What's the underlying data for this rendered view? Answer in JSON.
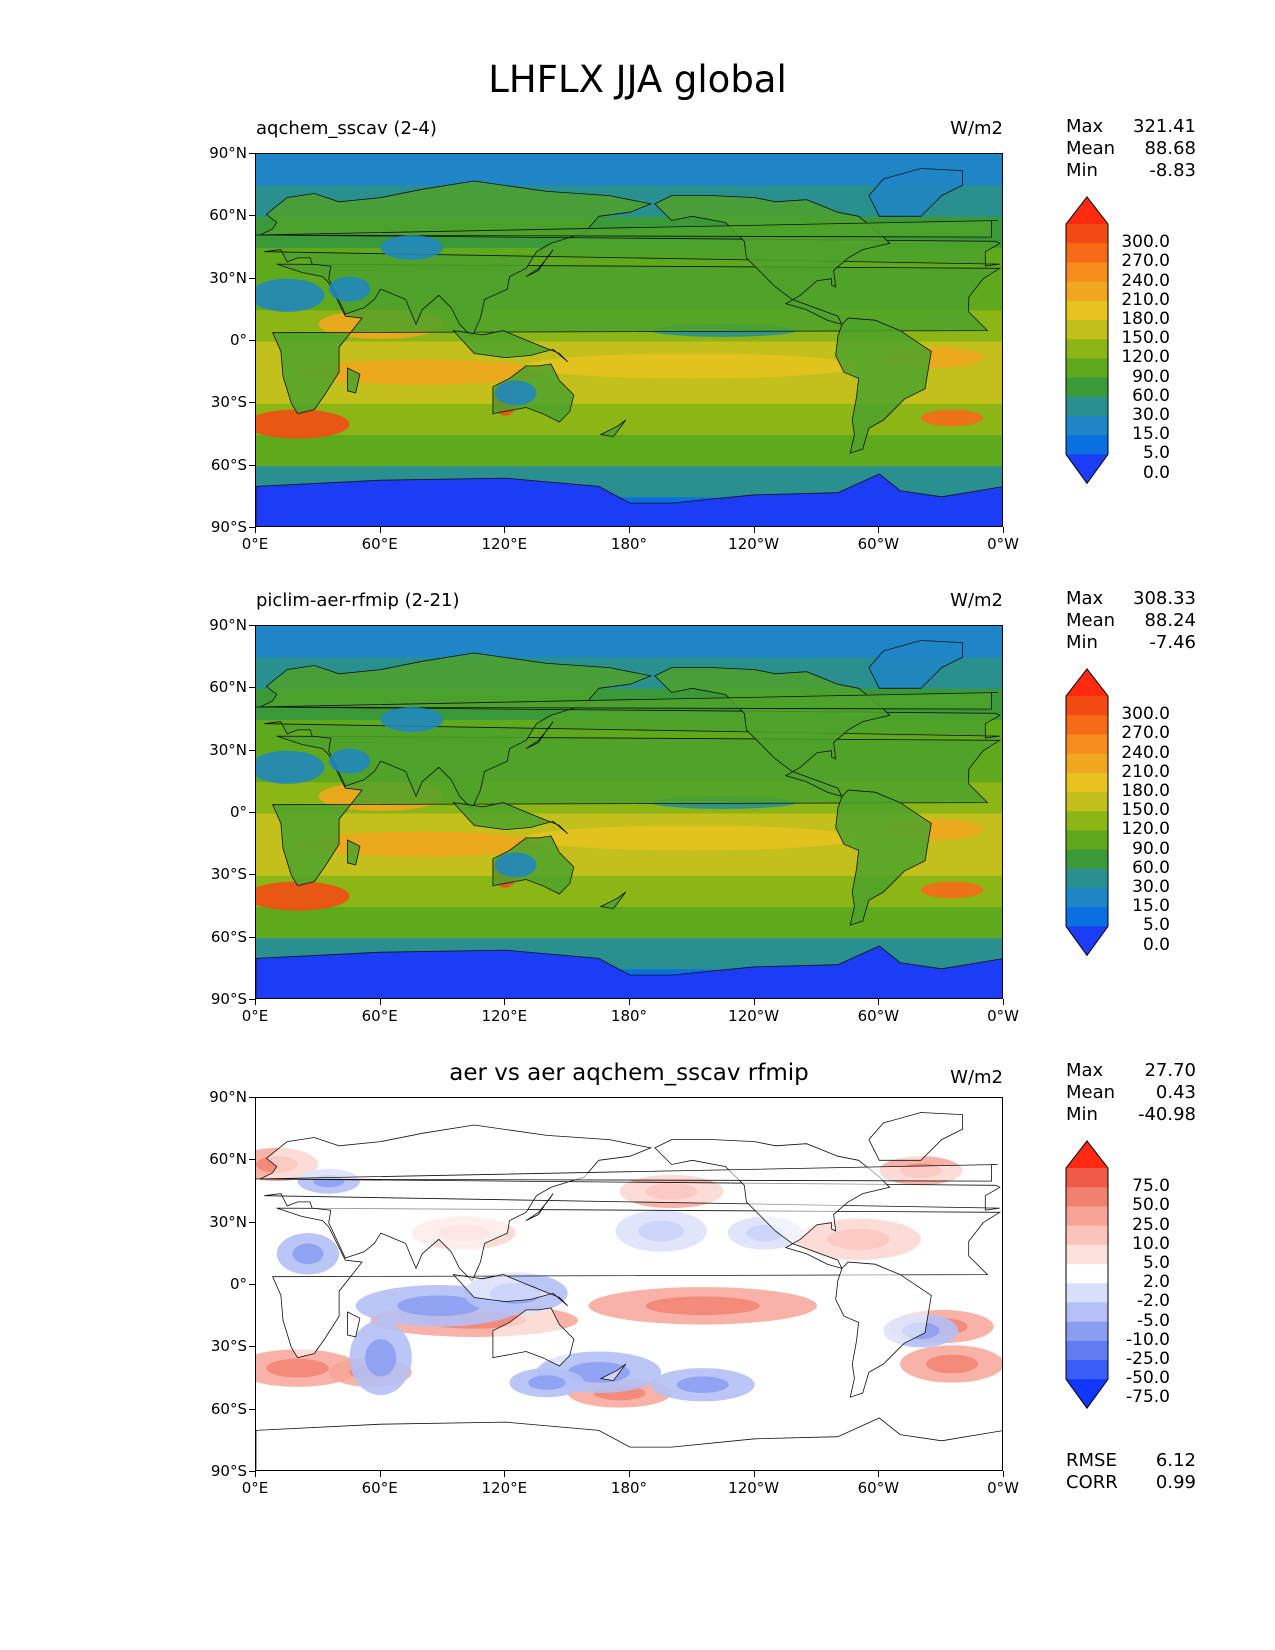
{
  "figure_title": "LHFLX JJA global",
  "axes": {
    "lat_ticks": [
      "90°N",
      "60°N",
      "30°N",
      "0°",
      "30°S",
      "60°S",
      "90°S"
    ],
    "lon_ticks": [
      "0°E",
      "60°E",
      "120°E",
      "180°",
      "120°W",
      "60°W",
      "0°W"
    ]
  },
  "panels": [
    {
      "title": "aqchem_sscav (2-4)",
      "units": "W/m2",
      "stats": {
        "max_label": "Max",
        "max": "321.41",
        "mean_label": "Mean",
        "mean": "88.68",
        "min_label": "Min",
        "min": "-8.83"
      },
      "colorbar": {
        "labels": [
          "300.0",
          "270.0",
          "240.0",
          "210.0",
          "180.0",
          "150.0",
          "120.0",
          "90.0",
          "60.0",
          "30.0",
          "15.0",
          "5.0",
          "0.0"
        ],
        "colors": [
          "#1c3cf6",
          "#0a6fe0",
          "#1e86c6",
          "#2a8f8f",
          "#3a9a3a",
          "#5faa1c",
          "#8cb516",
          "#c3c01c",
          "#e6c31e",
          "#f0a61e",
          "#f58c1c",
          "#f76a18",
          "#f24c14",
          "#ff2a10"
        ]
      }
    },
    {
      "title": "piclim-aer-rfmip (2-21)",
      "units": "W/m2",
      "stats": {
        "max_label": "Max",
        "max": "308.33",
        "mean_label": "Mean",
        "mean": "88.24",
        "min_label": "Min",
        "min": "-7.46"
      },
      "colorbar": {
        "labels": [
          "300.0",
          "270.0",
          "240.0",
          "210.0",
          "180.0",
          "150.0",
          "120.0",
          "90.0",
          "60.0",
          "30.0",
          "15.0",
          "5.0",
          "0.0"
        ],
        "colors": [
          "#1c3cf6",
          "#0a6fe0",
          "#1e86c6",
          "#2a8f8f",
          "#3a9a3a",
          "#5faa1c",
          "#8cb516",
          "#c3c01c",
          "#e6c31e",
          "#f0a61e",
          "#f58c1c",
          "#f76a18",
          "#f24c14",
          "#ff2a10"
        ]
      }
    },
    {
      "title": "aer vs aer aqchem_sscav rfmip",
      "units": "W/m2",
      "stats": {
        "max_label": "Max",
        "max": "27.70",
        "mean_label": "Mean",
        "mean": "0.43",
        "min_label": "Min",
        "min": "-40.98"
      },
      "colorbar": {
        "labels": [
          "75.0",
          "50.0",
          "25.0",
          "10.0",
          "5.0",
          "2.0",
          "-2.0",
          "-5.0",
          "-10.0",
          "-25.0",
          "-50.0",
          "-75.0"
        ],
        "colors": [
          "#1036ff",
          "#3a5ef5",
          "#5f7cf0",
          "#8a9df2",
          "#b4c0f6",
          "#d8dffb",
          "#ffffff",
          "#fde1dc",
          "#fbc4bb",
          "#f7a498",
          "#f2806f",
          "#ef5a47",
          "#ff2a10"
        ]
      },
      "fit": {
        "rmse_label": "RMSE",
        "rmse": "6.12",
        "corr_label": "CORR",
        "corr": "0.99"
      }
    }
  ],
  "chart_data": [
    {
      "type": "heatmap",
      "title": "aqchem_sscav (2-4)",
      "variable": "LHFLX",
      "season": "JJA",
      "region": "global",
      "units": "W/m2",
      "x_ticks": [
        "0°E",
        "60°E",
        "120°E",
        "180°",
        "120°W",
        "60°W",
        "0°W"
      ],
      "y_ticks": [
        "90°N",
        "60°N",
        "30°N",
        "0°",
        "30°S",
        "60°S",
        "90°S"
      ],
      "xlim": [
        0,
        360
      ],
      "ylim": [
        -90,
        90
      ],
      "levels": [
        0,
        5,
        15,
        30,
        60,
        90,
        120,
        150,
        180,
        210,
        240,
        270,
        300
      ],
      "max": 321.41,
      "mean": 88.68,
      "min": -8.83,
      "zonal_profile": {
        "lat": [
          -90,
          -75,
          -60,
          -45,
          -30,
          -15,
          0,
          15,
          30,
          45,
          60,
          75,
          90
        ],
        "value": [
          -2,
          2,
          45,
          95,
          135,
          160,
          120,
          70,
          60,
          60,
          40,
          15,
          5
        ]
      }
    },
    {
      "type": "heatmap",
      "title": "piclim-aer-rfmip (2-21)",
      "variable": "LHFLX",
      "season": "JJA",
      "region": "global",
      "units": "W/m2",
      "x_ticks": [
        "0°E",
        "60°E",
        "120°E",
        "180°",
        "120°W",
        "60°W",
        "0°W"
      ],
      "y_ticks": [
        "90°N",
        "60°N",
        "30°N",
        "0°",
        "30°S",
        "60°S",
        "90°S"
      ],
      "xlim": [
        0,
        360
      ],
      "ylim": [
        -90,
        90
      ],
      "levels": [
        0,
        5,
        15,
        30,
        60,
        90,
        120,
        150,
        180,
        210,
        240,
        270,
        300
      ],
      "max": 308.33,
      "mean": 88.24,
      "min": -7.46,
      "zonal_profile": {
        "lat": [
          -90,
          -75,
          -60,
          -45,
          -30,
          -15,
          0,
          15,
          30,
          45,
          60,
          75,
          90
        ],
        "value": [
          -2,
          2,
          45,
          95,
          135,
          160,
          120,
          70,
          60,
          60,
          40,
          15,
          5
        ]
      }
    },
    {
      "type": "heatmap",
      "title": "aer vs aer aqchem_sscav rfmip",
      "variable": "LHFLX difference",
      "units": "W/m2",
      "x_ticks": [
        "0°E",
        "60°E",
        "120°E",
        "180°",
        "120°W",
        "60°W",
        "0°W"
      ],
      "y_ticks": [
        "90°N",
        "60°N",
        "30°N",
        "0°",
        "30°S",
        "60°S",
        "90°S"
      ],
      "xlim": [
        0,
        360
      ],
      "ylim": [
        -90,
        90
      ],
      "levels": [
        -75,
        -50,
        -25,
        -10,
        -5,
        -2,
        2,
        5,
        10,
        25,
        50,
        75
      ],
      "max": 27.7,
      "mean": 0.43,
      "min": -40.98,
      "rmse": 6.12,
      "corr": 0.99
    }
  ]
}
